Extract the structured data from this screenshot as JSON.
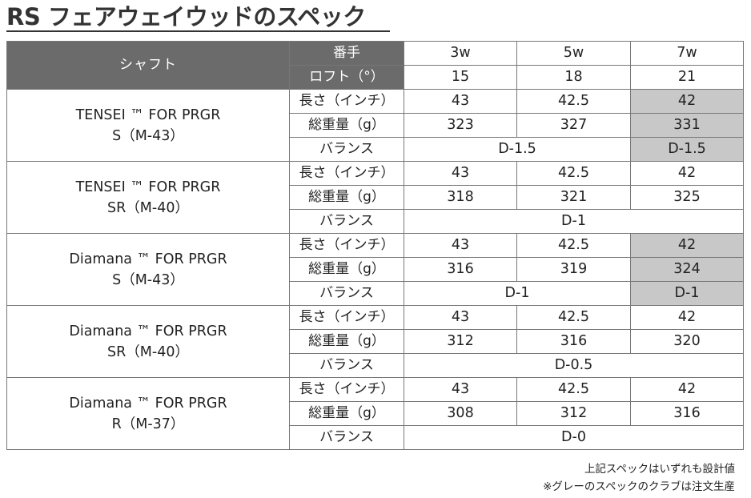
{
  "title": "RS フェアウェイウッドのスペック",
  "header": {
    "shaft_label": "シャフト",
    "club_label": "番手",
    "loft_label": "ロフト（°）",
    "clubs": [
      "3w",
      "5w",
      "7w"
    ],
    "lofts": [
      "15",
      "18",
      "21"
    ]
  },
  "row_labels": {
    "length": "長さ（インチ）",
    "weight": "総重量（g）",
    "balance": "バランス"
  },
  "shafts": [
    {
      "name": "TENSEI ™ FOR PRGR",
      "flex": "S（M-43）",
      "length": [
        "43",
        "42.5",
        "42"
      ],
      "weight": [
        "323",
        "327",
        "331"
      ],
      "balance_main": "D-1.5",
      "balance_7w": "D-1.5"
    },
    {
      "name": "TENSEI ™ FOR PRGR",
      "flex": "SR（M-40）",
      "length": [
        "43",
        "42.5",
        "42"
      ],
      "weight": [
        "318",
        "321",
        "325"
      ],
      "balance_all": "D-1"
    },
    {
      "name": "Diamana ™ FOR PRGR",
      "flex": "S（M-43）",
      "length": [
        "43",
        "42.5",
        "42"
      ],
      "weight": [
        "316",
        "319",
        "324"
      ],
      "balance_main": "D-1",
      "balance_7w": "D-1"
    },
    {
      "name": "Diamana ™ FOR PRGR",
      "flex": "SR（M-40）",
      "length": [
        "43",
        "42.5",
        "42"
      ],
      "weight": [
        "312",
        "316",
        "320"
      ],
      "balance_all": "D-0.5"
    },
    {
      "name": "Diamana ™ FOR PRGR",
      "flex": "R（M-37）",
      "length": [
        "43",
        "42.5",
        "42"
      ],
      "weight": [
        "308",
        "312",
        "316"
      ],
      "balance_all": "D-0"
    }
  ],
  "notes": [
    "上記スペックはいずれも設計値",
    "※グレーのスペックのクラブは注文生産"
  ],
  "colors": {
    "header_bg": "#6b6b6b",
    "highlight_gray": "#c8c8c8",
    "border": "#777777"
  }
}
